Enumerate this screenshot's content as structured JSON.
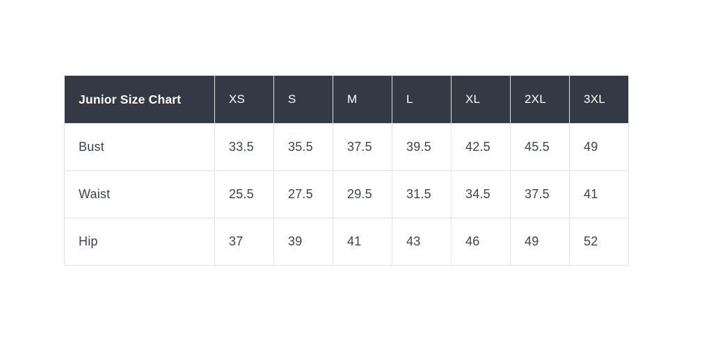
{
  "page": {
    "background_color": "#ffffff"
  },
  "colors": {
    "header_background": "#343a45",
    "header_text": "#ffffff",
    "body_text": "#3d434c",
    "cell_border": "#e2e3e5"
  },
  "chart_data": {
    "type": "table",
    "title": "Junior Size Chart",
    "columns": [
      "XS",
      "S",
      "M",
      "L",
      "XL",
      "2XL",
      "3XL"
    ],
    "rows": [
      {
        "label": "Bust",
        "values": [
          33.5,
          35.5,
          37.5,
          39.5,
          42.5,
          45.5,
          49
        ]
      },
      {
        "label": "Waist",
        "values": [
          25.5,
          27.5,
          29.5,
          31.5,
          34.5,
          37.5,
          41
        ]
      },
      {
        "label": "Hip",
        "values": [
          37,
          39,
          41,
          43,
          46,
          49,
          52
        ]
      }
    ]
  }
}
